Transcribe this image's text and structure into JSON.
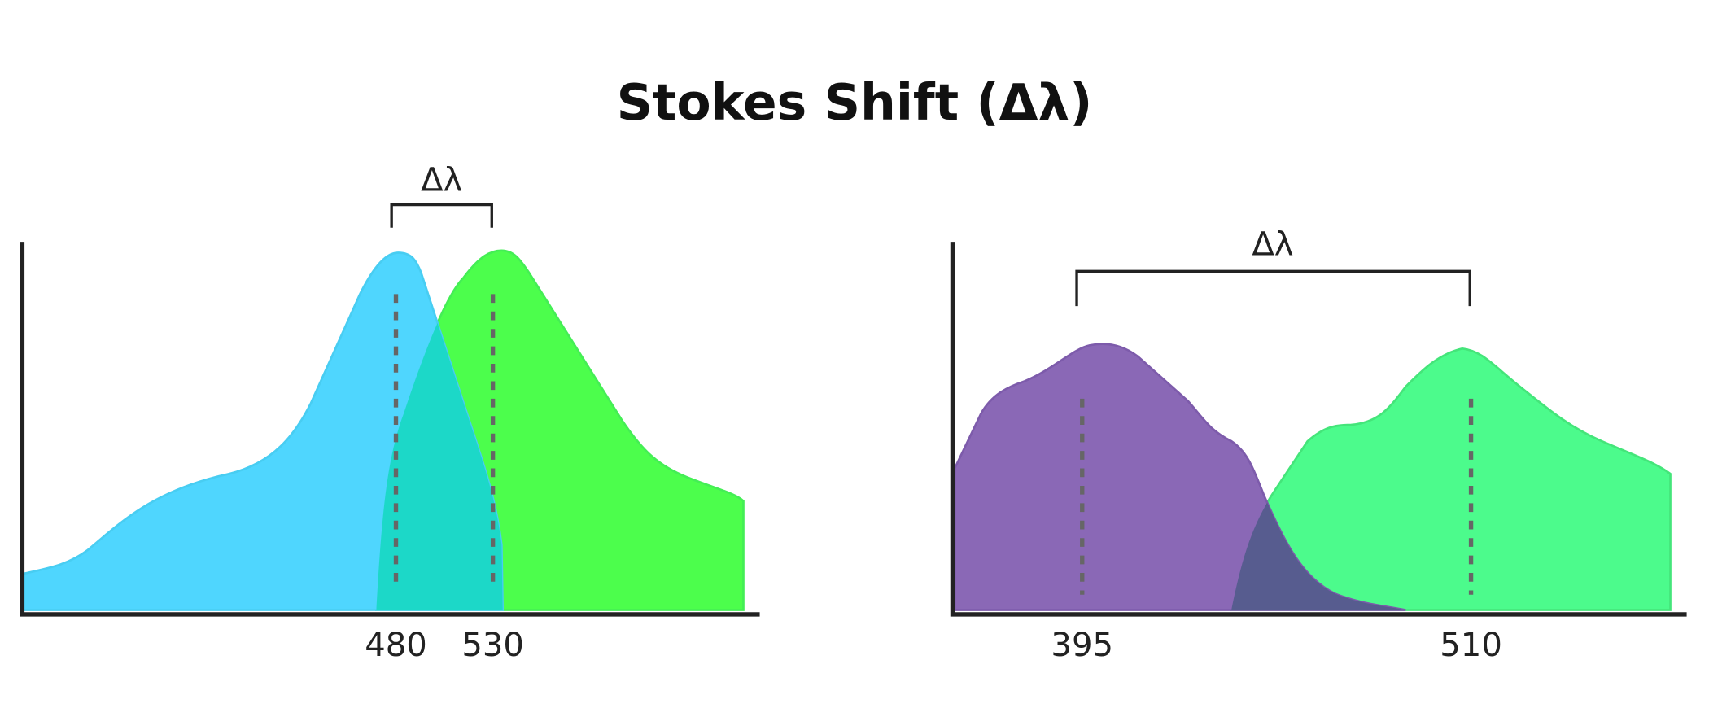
{
  "title": "Stokes Shift (Δλ)",
  "panels": [
    {
      "delta_label": "Δλ",
      "peaks": [
        "480",
        "530"
      ]
    },
    {
      "delta_label": "Δλ",
      "peaks": [
        "395",
        "510"
      ]
    }
  ]
}
